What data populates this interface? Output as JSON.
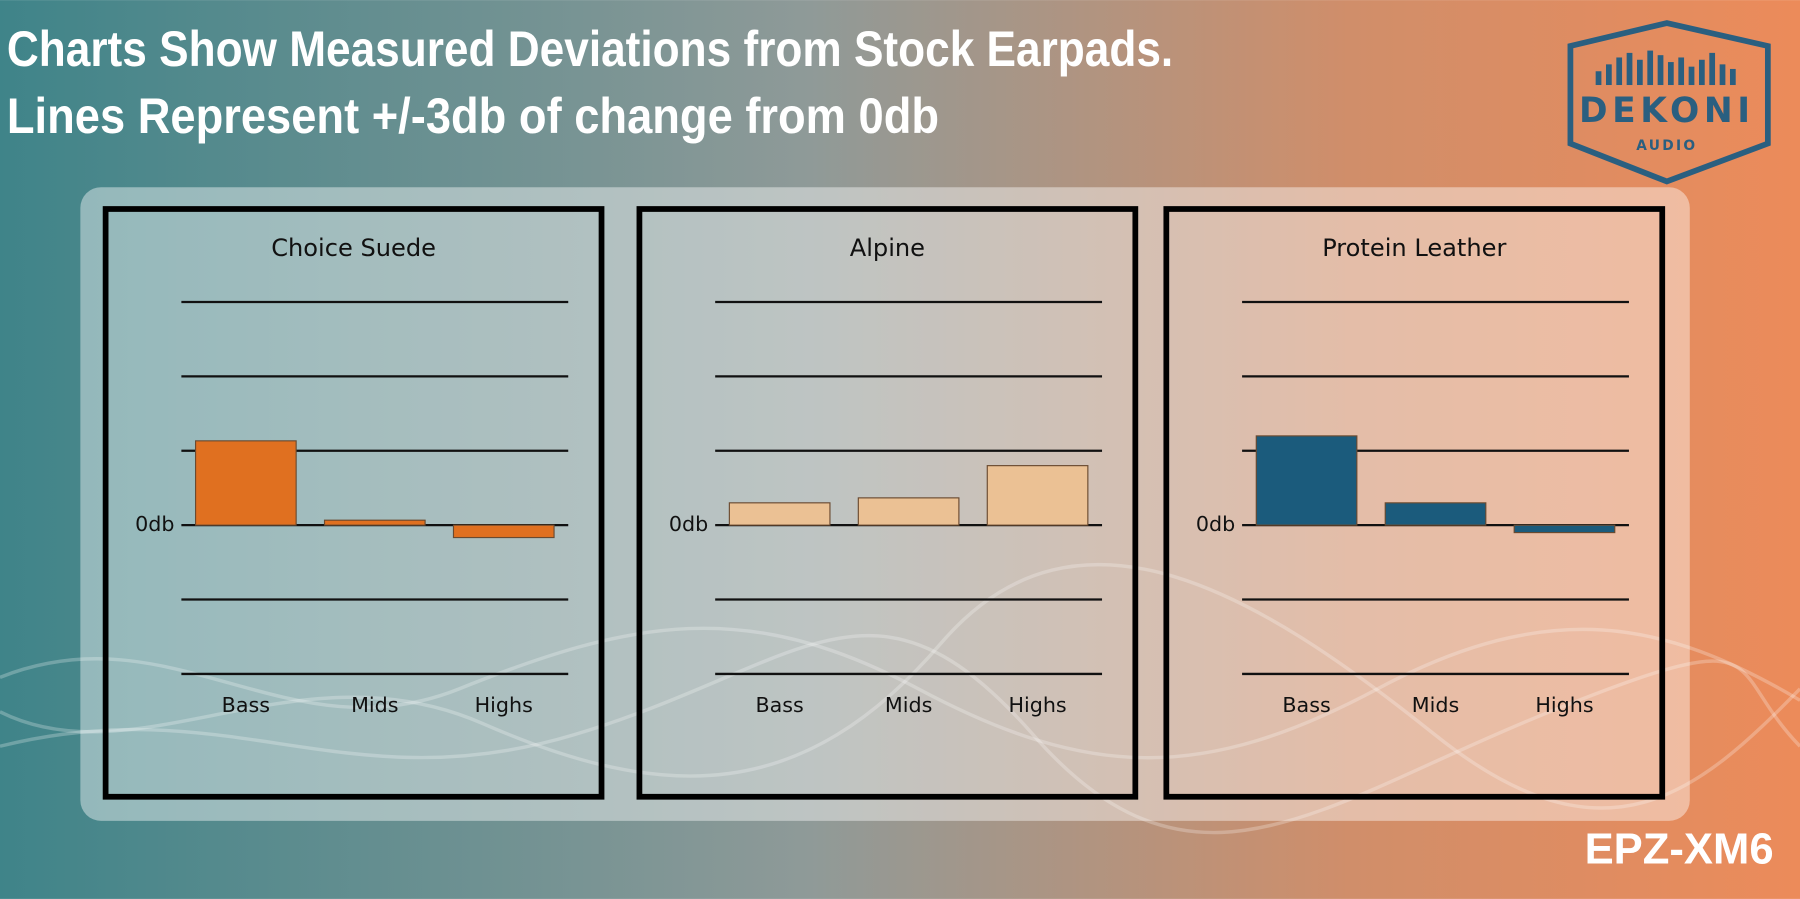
{
  "header": {
    "title": [
      "Charts Show Measured Deviations from Stock Earpads.",
      "Lines Represent +/-3db of change from 0db"
    ]
  },
  "logo": {
    "brand": "DEKONI",
    "sub": "AUDIO"
  },
  "footer": {
    "model": "EPZ-XM6"
  },
  "chart_data": [
    {
      "type": "bar",
      "title": "Choice Suede",
      "categories": [
        "Bass",
        "Mids",
        "Highs"
      ],
      "values": [
        3.4,
        0.2,
        -0.5
      ],
      "color": "#e07020",
      "ylim": [
        -6,
        9
      ],
      "yticks": [
        -6,
        -3,
        {
          "value": 0,
          "label": "0db"
        },
        3,
        6,
        9
      ],
      "grid": true
    },
    {
      "type": "bar",
      "title": "Alpine",
      "categories": [
        "Bass",
        "Mids",
        "Highs"
      ],
      "values": [
        0.9,
        1.1,
        2.4
      ],
      "color": "#ebc194",
      "ylim": [
        -6,
        9
      ],
      "yticks": [
        -6,
        -3,
        {
          "value": 0,
          "label": "0db"
        },
        3,
        6,
        9
      ],
      "grid": true
    },
    {
      "type": "bar",
      "title": "Protein Leather",
      "categories": [
        "Bass",
        "Mids",
        "Highs"
      ],
      "values": [
        3.6,
        0.9,
        -0.3
      ],
      "color": "#1b5b7c",
      "ylim": [
        -6,
        9
      ],
      "yticks": [
        -6,
        -3,
        {
          "value": 0,
          "label": "0db"
        },
        3,
        6,
        9
      ],
      "grid": true
    }
  ]
}
